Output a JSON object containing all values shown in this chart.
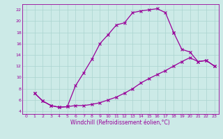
{
  "xlabel": "Windchill (Refroidissement éolien,°C)",
  "bg_color": "#cceae7",
  "line_color": "#990099",
  "grid_color": "#aad4d0",
  "xlim": [
    -0.5,
    23.5
  ],
  "ylim": [
    3.5,
    23.0
  ],
  "xticks": [
    0,
    1,
    2,
    3,
    4,
    5,
    6,
    7,
    8,
    9,
    10,
    11,
    12,
    13,
    14,
    15,
    16,
    17,
    18,
    19,
    20,
    21,
    22,
    23
  ],
  "yticks": [
    4,
    6,
    8,
    10,
    12,
    14,
    16,
    18,
    20,
    22
  ],
  "line1_x": [
    1,
    2,
    3,
    4,
    5,
    6,
    7,
    8,
    9,
    10,
    11,
    12,
    13,
    14,
    15,
    16,
    17,
    18
  ],
  "line1_y": [
    7.2,
    5.8,
    5.0,
    4.7,
    4.8,
    8.5,
    10.8,
    13.2,
    16.0,
    17.6,
    19.3,
    19.7,
    21.5,
    21.8,
    22.0,
    22.2,
    21.5,
    18.0
  ],
  "line2_x": [
    1,
    2,
    3,
    4,
    5,
    6,
    7,
    8,
    9,
    10,
    11,
    12,
    13,
    14,
    15,
    16,
    17,
    18,
    19,
    20,
    21,
    22,
    23
  ],
  "line2_y": [
    7.2,
    5.8,
    5.0,
    4.7,
    4.8,
    5.0,
    5.0,
    5.2,
    5.5,
    6.0,
    6.5,
    7.2,
    8.0,
    9.0,
    9.8,
    10.5,
    11.2,
    12.0,
    12.8,
    13.5,
    12.8,
    13.0,
    12.0
  ],
  "line3_x": [
    18,
    19,
    20,
    21,
    22,
    23
  ],
  "line3_y": [
    18.0,
    15.0,
    14.5,
    12.8,
    13.0,
    12.0
  ]
}
